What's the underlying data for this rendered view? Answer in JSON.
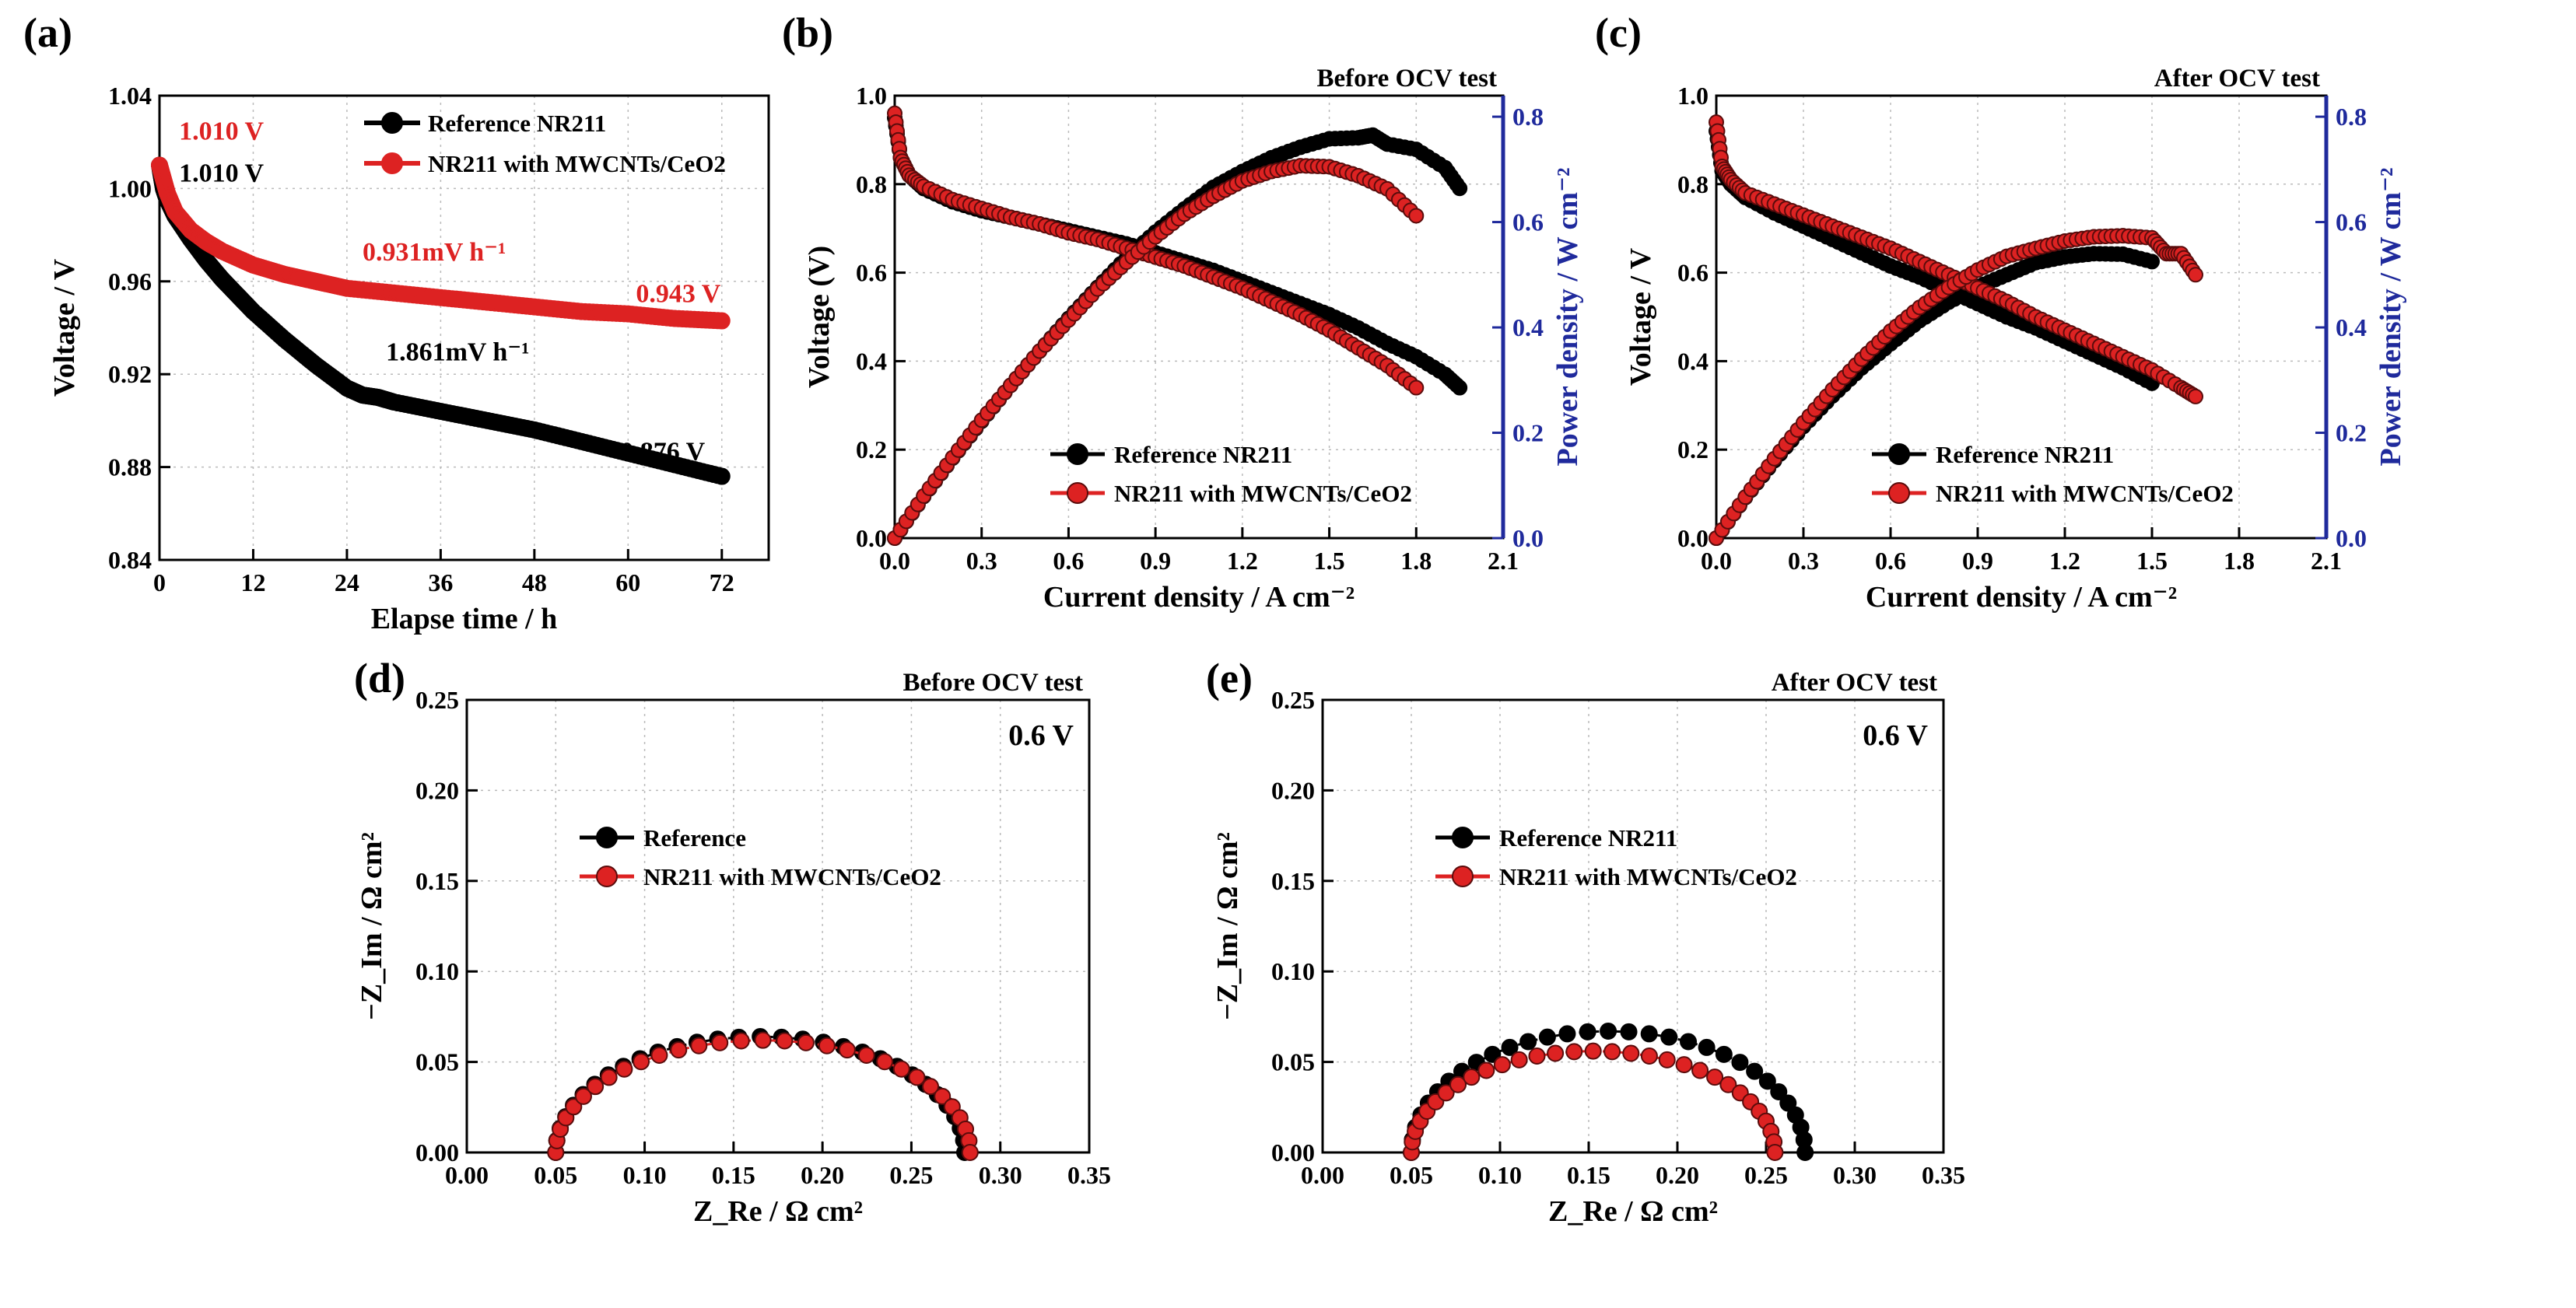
{
  "colors": {
    "reference": "#000000",
    "ceo2": "#dd2222",
    "ceo2_edge": "#5a0c0c",
    "power_axis": "#1f2a9c"
  },
  "chart_data": [
    {
      "id": "a",
      "panel_label": "(a)",
      "type": "line",
      "title": "",
      "xlabel": "Elapse time / h",
      "ylabel": "Voltage / V",
      "xlim": [
        0,
        78
      ],
      "ylim": [
        0.84,
        1.04
      ],
      "xticks": [
        0,
        12,
        24,
        36,
        48,
        60,
        72
      ],
      "yticks": [
        0.84,
        0.88,
        0.92,
        0.96,
        1.0,
        1.04
      ],
      "series": [
        {
          "name": "Reference NR211",
          "color": "reference",
          "x": [
            0,
            0.5,
            1,
            2,
            4,
            6,
            8,
            10,
            12,
            16,
            20,
            24,
            26,
            28,
            30,
            36,
            42,
            48,
            54,
            60,
            66,
            72
          ],
          "y": [
            1.01,
            1.0,
            0.995,
            0.988,
            0.978,
            0.969,
            0.961,
            0.954,
            0.947,
            0.935,
            0.924,
            0.914,
            0.911,
            0.91,
            0.908,
            0.904,
            0.9,
            0.896,
            0.891,
            0.886,
            0.881,
            0.876
          ]
        },
        {
          "name": "NR211 with MWCNTs/CeO2",
          "color": "ceo2",
          "x": [
            0,
            0.5,
            1,
            2,
            4,
            6,
            8,
            12,
            16,
            20,
            24,
            30,
            36,
            42,
            48,
            54,
            60,
            66,
            72
          ],
          "y": [
            1.01,
            1.004,
            0.998,
            0.99,
            0.982,
            0.977,
            0.973,
            0.967,
            0.963,
            0.96,
            0.957,
            0.955,
            0.953,
            0.951,
            0.949,
            0.947,
            0.946,
            0.944,
            0.943
          ]
        }
      ],
      "annotations": [
        {
          "text": "1.010 V",
          "x": 2.5,
          "y": 1.021,
          "color": "ceo2"
        },
        {
          "text": "1.010 V",
          "x": 2.5,
          "y": 1.003,
          "color": "reference"
        },
        {
          "text": "0.931mV h⁻¹",
          "x": 26,
          "y": 0.969,
          "color": "ceo2"
        },
        {
          "text": "0.943 V",
          "x": 61,
          "y": 0.951,
          "color": "ceo2"
        },
        {
          "text": "1.861mV h⁻¹",
          "x": 29,
          "y": 0.926,
          "color": "reference"
        },
        {
          "text": "0.876 V",
          "x": 59,
          "y": 0.883,
          "color": "reference"
        }
      ]
    },
    {
      "id": "b",
      "panel_label": "(b)",
      "type": "line",
      "title": "Before OCV test",
      "xlabel": "Current density / A cm⁻²",
      "ylabel": "Voltage (V)",
      "y2label": "Power density / W cm⁻²",
      "xlim": [
        0,
        2.1
      ],
      "ylim": [
        0,
        1.0
      ],
      "y2lim": [
        0,
        0.84
      ],
      "xticks": [
        0.0,
        0.3,
        0.6,
        0.9,
        1.2,
        1.5,
        1.8,
        2.1
      ],
      "yticks": [
        0.0,
        0.2,
        0.4,
        0.6,
        0.8,
        1.0
      ],
      "y2ticks": [
        0.0,
        0.2,
        0.4,
        0.6,
        0.8
      ],
      "series": [
        {
          "name": "Reference NR211",
          "color": "reference",
          "kind": "voltage",
          "x": [
            0,
            0.02,
            0.05,
            0.1,
            0.2,
            0.3,
            0.4,
            0.5,
            0.6,
            0.7,
            0.8,
            0.9,
            1.0,
            1.1,
            1.2,
            1.3,
            1.4,
            1.5,
            1.6,
            1.7,
            1.8,
            1.9,
            1.95
          ],
          "y": [
            0.95,
            0.86,
            0.82,
            0.79,
            0.76,
            0.74,
            0.725,
            0.71,
            0.695,
            0.68,
            0.665,
            0.645,
            0.625,
            0.605,
            0.58,
            0.555,
            0.53,
            0.505,
            0.475,
            0.44,
            0.41,
            0.37,
            0.34
          ]
        },
        {
          "name": "Reference NR211",
          "color": "reference",
          "kind": "power",
          "x": [
            0,
            0.1,
            0.2,
            0.3,
            0.4,
            0.5,
            0.6,
            0.7,
            0.8,
            0.9,
            1.0,
            1.1,
            1.2,
            1.3,
            1.4,
            1.5,
            1.6,
            1.65,
            1.7,
            1.8,
            1.9,
            1.95
          ],
          "y": [
            0.0,
            0.079,
            0.152,
            0.222,
            0.29,
            0.355,
            0.417,
            0.476,
            0.532,
            0.581,
            0.625,
            0.666,
            0.696,
            0.722,
            0.742,
            0.758,
            0.76,
            0.765,
            0.748,
            0.738,
            0.703,
            0.664
          ]
        },
        {
          "name": "NR211 with MWCNTs/CeO2",
          "color": "ceo2",
          "kind": "voltage",
          "x": [
            0,
            0.02,
            0.05,
            0.1,
            0.2,
            0.3,
            0.4,
            0.5,
            0.6,
            0.7,
            0.8,
            0.9,
            1.0,
            1.1,
            1.2,
            1.3,
            1.4,
            1.5,
            1.6,
            1.7,
            1.8
          ],
          "y": [
            0.96,
            0.86,
            0.82,
            0.795,
            0.765,
            0.745,
            0.725,
            0.71,
            0.69,
            0.675,
            0.655,
            0.635,
            0.615,
            0.59,
            0.565,
            0.535,
            0.505,
            0.47,
            0.43,
            0.39,
            0.34
          ]
        },
        {
          "name": "NR211 with MWCNTs/CeO2",
          "color": "ceo2",
          "kind": "power",
          "x": [
            0,
            0.1,
            0.2,
            0.3,
            0.4,
            0.5,
            0.6,
            0.7,
            0.8,
            0.9,
            1.0,
            1.1,
            1.2,
            1.3,
            1.4,
            1.5,
            1.6,
            1.7,
            1.8
          ],
          "y": [
            0.0,
            0.08,
            0.153,
            0.224,
            0.29,
            0.355,
            0.414,
            0.473,
            0.524,
            0.572,
            0.615,
            0.649,
            0.678,
            0.696,
            0.707,
            0.705,
            0.688,
            0.663,
            0.612
          ]
        }
      ],
      "legend": {
        "position": "bottom-center"
      }
    },
    {
      "id": "c",
      "panel_label": "(c)",
      "type": "line",
      "title": "After OCV test",
      "xlabel": "Current density / A cm⁻²",
      "ylabel": "Voltage / V",
      "y2label": "Power density / W cm⁻²",
      "xlim": [
        0,
        2.1
      ],
      "ylim": [
        0,
        1.0
      ],
      "y2lim": [
        0,
        0.84
      ],
      "xticks": [
        0.0,
        0.3,
        0.6,
        0.9,
        1.2,
        1.5,
        1.8,
        2.1
      ],
      "yticks": [
        0.0,
        0.2,
        0.4,
        0.6,
        0.8,
        1.0
      ],
      "y2ticks": [
        0.0,
        0.2,
        0.4,
        0.6,
        0.8
      ],
      "series": [
        {
          "name": "Reference NR211",
          "color": "reference",
          "kind": "voltage",
          "x": [
            0,
            0.02,
            0.05,
            0.1,
            0.2,
            0.3,
            0.4,
            0.5,
            0.6,
            0.7,
            0.8,
            0.9,
            1.0,
            1.1,
            1.2,
            1.3,
            1.4,
            1.5
          ],
          "y": [
            0.92,
            0.83,
            0.8,
            0.77,
            0.735,
            0.705,
            0.675,
            0.645,
            0.615,
            0.59,
            0.56,
            0.53,
            0.5,
            0.475,
            0.445,
            0.415,
            0.385,
            0.35
          ]
        },
        {
          "name": "Reference NR211",
          "color": "reference",
          "kind": "power",
          "x": [
            0,
            0.1,
            0.2,
            0.3,
            0.4,
            0.5,
            0.6,
            0.7,
            0.8,
            0.9,
            1.0,
            1.1,
            1.2,
            1.3,
            1.4,
            1.5
          ],
          "y": [
            0.0,
            0.077,
            0.147,
            0.212,
            0.27,
            0.323,
            0.369,
            0.413,
            0.448,
            0.477,
            0.5,
            0.523,
            0.534,
            0.54,
            0.539,
            0.525
          ]
        },
        {
          "name": "NR211 with MWCNTs/CeO2",
          "color": "ceo2",
          "kind": "voltage",
          "x": [
            0,
            0.02,
            0.05,
            0.1,
            0.2,
            0.3,
            0.4,
            0.5,
            0.6,
            0.7,
            0.8,
            0.9,
            1.0,
            1.1,
            1.2,
            1.3,
            1.4,
            1.5,
            1.6,
            1.65
          ],
          "y": [
            0.94,
            0.84,
            0.81,
            0.78,
            0.755,
            0.73,
            0.705,
            0.68,
            0.655,
            0.625,
            0.595,
            0.565,
            0.535,
            0.5,
            0.47,
            0.44,
            0.41,
            0.38,
            0.34,
            0.32
          ]
        },
        {
          "name": "NR211 with MWCNTs/CeO2",
          "color": "ceo2",
          "kind": "power",
          "x": [
            0,
            0.1,
            0.2,
            0.3,
            0.4,
            0.5,
            0.6,
            0.7,
            0.8,
            0.9,
            1.0,
            1.1,
            1.2,
            1.3,
            1.4,
            1.5,
            1.55,
            1.6,
            1.65
          ],
          "y": [
            0.0,
            0.078,
            0.151,
            0.219,
            0.282,
            0.34,
            0.393,
            0.438,
            0.476,
            0.509,
            0.535,
            0.55,
            0.564,
            0.572,
            0.574,
            0.57,
            0.54,
            0.54,
            0.5
          ]
        }
      ],
      "legend": {
        "position": "bottom-center"
      }
    },
    {
      "id": "d",
      "panel_label": "(d)",
      "type": "scatter",
      "title": "Before OCV test",
      "xlabel": "Z_Re / Ω cm²",
      "ylabel": "−Z_Im / Ω cm²",
      "inset_label": "0.6 V",
      "xlim": [
        0,
        0.35
      ],
      "ylim": [
        0,
        0.25
      ],
      "xticks": [
        0.0,
        0.05,
        0.1,
        0.15,
        0.2,
        0.25,
        0.3,
        0.35
      ],
      "yticks": [
        0.0,
        0.05,
        0.1,
        0.15,
        0.2,
        0.25
      ],
      "series": [
        {
          "name": "Reference",
          "color": "reference",
          "arc": {
            "x_start": 0.05,
            "x_end": 0.28,
            "peak": 0.064
          }
        },
        {
          "name": "NR211 with MWCNTs/CeO2",
          "color": "ceo2",
          "arc": {
            "x_start": 0.05,
            "x_end": 0.283,
            "peak": 0.062
          }
        }
      ],
      "legend": {
        "position": "center-left"
      }
    },
    {
      "id": "e",
      "panel_label": "(e)",
      "type": "scatter",
      "title": "After OCV test",
      "xlabel": "Z_Re / Ω cm²",
      "ylabel": "−Z_Im / Ω cm²",
      "inset_label": "0.6 V",
      "xlim": [
        0,
        0.35
      ],
      "ylim": [
        0,
        0.25
      ],
      "xticks": [
        0.0,
        0.05,
        0.1,
        0.15,
        0.2,
        0.25,
        0.3,
        0.35
      ],
      "yticks": [
        0.0,
        0.05,
        0.1,
        0.15,
        0.2,
        0.25
      ],
      "series": [
        {
          "name": "Reference NR211",
          "color": "reference",
          "arc": {
            "x_start": 0.05,
            "x_end": 0.272,
            "peak": 0.067
          }
        },
        {
          "name": "NR211 with MWCNTs/CeO2",
          "color": "ceo2",
          "arc": {
            "x_start": 0.05,
            "x_end": 0.255,
            "peak": 0.056
          }
        }
      ],
      "legend": {
        "position": "center-left"
      }
    }
  ]
}
